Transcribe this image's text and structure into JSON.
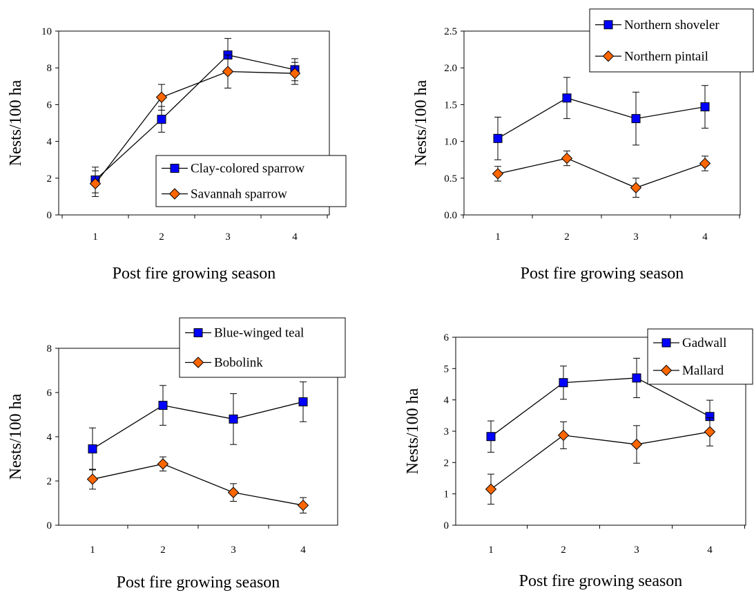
{
  "colors": {
    "series_square": "#0000ff",
    "series_diamond": "#ff6600",
    "line": "#000000"
  },
  "chart_data": [
    {
      "type": "line",
      "xlabel": "Post fire growing season",
      "ylabel": "Nests/100 ha",
      "x": [
        1,
        2,
        3,
        4
      ],
      "x_ticks": [
        "1",
        "2",
        "3",
        "4"
      ],
      "ylim": [
        0,
        10
      ],
      "y_ticks": [
        "0",
        "2",
        "4",
        "6",
        "8",
        "10"
      ],
      "legend_position": "lower-right",
      "series": [
        {
          "name": "Clay-colored sparrow",
          "marker": "square",
          "values": [
            1.9,
            5.2,
            8.7,
            7.9
          ],
          "error": [
            0.7,
            0.7,
            0.9,
            0.6
          ]
        },
        {
          "name": "Savannah sparrow",
          "marker": "diamond",
          "values": [
            1.7,
            6.4,
            7.8,
            7.7
          ],
          "error": [
            0.7,
            0.7,
            0.9,
            0.6
          ]
        }
      ]
    },
    {
      "type": "line",
      "xlabel": "Post fire growing season",
      "ylabel": "Nests/100 ha",
      "x": [
        1,
        2,
        3,
        4
      ],
      "x_ticks": [
        "1",
        "2",
        "3",
        "4"
      ],
      "ylim": [
        0,
        2.5
      ],
      "y_ticks": [
        "0.0",
        "0.5",
        "1.0",
        "1.5",
        "2.0",
        "2.5"
      ],
      "legend_position": "top-right",
      "series": [
        {
          "name": "Northern shoveler",
          "marker": "square",
          "values": [
            1.04,
            1.59,
            1.31,
            1.47
          ],
          "error": [
            0.29,
            0.28,
            0.36,
            0.29
          ]
        },
        {
          "name": "Northern pintail",
          "marker": "diamond",
          "values": [
            0.56,
            0.77,
            0.37,
            0.7
          ],
          "error": [
            0.1,
            0.1,
            0.13,
            0.1
          ]
        }
      ]
    },
    {
      "type": "line",
      "xlabel": "Post fire growing season",
      "ylabel": "Nests/100 ha",
      "x": [
        1,
        2,
        3,
        4
      ],
      "x_ticks": [
        "1",
        "2",
        "3",
        "4"
      ],
      "ylim": [
        0,
        8
      ],
      "y_ticks": [
        "0",
        "2",
        "4",
        "6",
        "8"
      ],
      "legend_position": "top-right",
      "series": [
        {
          "name": "Blue-winged teal",
          "marker": "square",
          "values": [
            3.45,
            5.42,
            4.8,
            5.58
          ],
          "error": [
            0.95,
            0.9,
            1.15,
            0.9
          ]
        },
        {
          "name": "Bobolink",
          "marker": "diamond",
          "values": [
            2.08,
            2.77,
            1.48,
            0.9
          ],
          "error": [
            0.45,
            0.32,
            0.4,
            0.35
          ]
        }
      ]
    },
    {
      "type": "line",
      "xlabel": "Post fire growing season",
      "ylabel": "Nests/100 ha",
      "x": [
        1,
        2,
        3,
        4
      ],
      "x_ticks": [
        "1",
        "2",
        "3",
        "4"
      ],
      "ylim": [
        0,
        6
      ],
      "y_ticks": [
        "0",
        "1",
        "2",
        "3",
        "4",
        "5",
        "6"
      ],
      "legend_position": "top-right",
      "series": [
        {
          "name": "Gadwall",
          "marker": "square",
          "values": [
            2.83,
            4.55,
            4.7,
            3.47
          ],
          "error": [
            0.5,
            0.53,
            0.63,
            0.52
          ]
        },
        {
          "name": "Mallard",
          "marker": "diamond",
          "values": [
            1.15,
            2.87,
            2.58,
            2.98
          ],
          "error": [
            0.48,
            0.43,
            0.6,
            0.45
          ]
        }
      ]
    }
  ]
}
